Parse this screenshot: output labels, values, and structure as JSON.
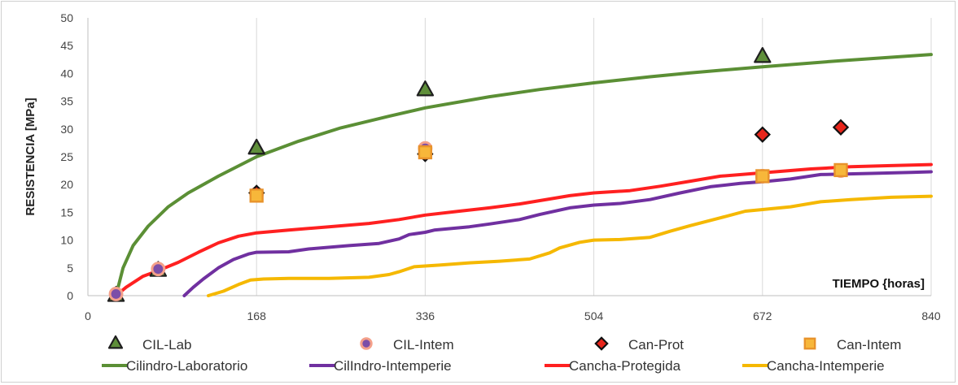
{
  "chart_data": {
    "type": "line",
    "xlabel": "TIEMPO {horas]",
    "ylabel": "RESISTENCIA [MPa]",
    "xlim": [
      0,
      840
    ],
    "ylim": [
      0,
      50
    ],
    "x_ticks": [
      0,
      168,
      336,
      504,
      672,
      840
    ],
    "y_ticks": [
      0,
      5,
      10,
      15,
      20,
      25,
      30,
      35,
      40,
      45,
      50
    ],
    "grid": "vertical",
    "legend_position": "bottom",
    "scatter_series": [
      {
        "name": "CIL-Lab",
        "marker": "triangle",
        "color": "#1f1f1f",
        "fill": "#5f8f3a",
        "points": [
          [
            28,
            0
          ],
          [
            70,
            4.5
          ],
          [
            168,
            26.5
          ],
          [
            336,
            37
          ],
          [
            672,
            43
          ]
        ]
      },
      {
        "name": "CIL-Intem",
        "marker": "circle",
        "color": "#f4a08a",
        "fill": "#7b4ea8",
        "points": [
          [
            28,
            0.3
          ],
          [
            70,
            4.8
          ],
          [
            168,
            18.3
          ],
          [
            336,
            26.5
          ],
          [
            672,
            21.5
          ],
          [
            750,
            22.5
          ]
        ]
      },
      {
        "name": "Can-Prot",
        "marker": "diamond",
        "color": "#111111",
        "fill": "#e8251b",
        "points": [
          [
            168,
            18.5
          ],
          [
            336,
            25.5
          ],
          [
            672,
            29
          ],
          [
            750,
            30.3
          ]
        ]
      },
      {
        "name": "Can-Intem",
        "marker": "square",
        "color": "#e8932b",
        "fill": "#f7b73a",
        "points": [
          [
            168,
            18
          ],
          [
            336,
            25.8
          ],
          [
            672,
            21.5
          ],
          [
            750,
            22.6
          ]
        ]
      }
    ],
    "line_series": [
      {
        "name": "Cilindro-Laboratorio",
        "color": "#5b8f35",
        "points": [
          [
            28,
            0
          ],
          [
            35,
            5
          ],
          [
            45,
            9
          ],
          [
            60,
            12.5
          ],
          [
            80,
            16
          ],
          [
            100,
            18.5
          ],
          [
            130,
            21.5
          ],
          [
            168,
            25
          ],
          [
            210,
            27.8
          ],
          [
            252,
            30.2
          ],
          [
            300,
            32.3
          ],
          [
            336,
            33.8
          ],
          [
            400,
            35.8
          ],
          [
            450,
            37.1
          ],
          [
            504,
            38.3
          ],
          [
            560,
            39.4
          ],
          [
            600,
            40.1
          ],
          [
            672,
            41.2
          ],
          [
            750,
            42.3
          ],
          [
            840,
            43.4
          ]
        ]
      },
      {
        "name": "CilIndro-Intemperie",
        "color": "#7030a0",
        "points": [
          [
            96,
            0
          ],
          [
            105,
            1.5
          ],
          [
            115,
            3
          ],
          [
            130,
            5
          ],
          [
            145,
            6.5
          ],
          [
            160,
            7.5
          ],
          [
            168,
            7.8
          ],
          [
            200,
            7.9
          ],
          [
            220,
            8.4
          ],
          [
            260,
            9
          ],
          [
            290,
            9.4
          ],
          [
            310,
            10.2
          ],
          [
            320,
            11
          ],
          [
            336,
            11.4
          ],
          [
            345,
            11.8
          ],
          [
            380,
            12.4
          ],
          [
            400,
            12.9
          ],
          [
            430,
            13.7
          ],
          [
            450,
            14.6
          ],
          [
            480,
            15.8
          ],
          [
            504,
            16.3
          ],
          [
            530,
            16.6
          ],
          [
            560,
            17.3
          ],
          [
            590,
            18.5
          ],
          [
            620,
            19.6
          ],
          [
            650,
            20.2
          ],
          [
            672,
            20.5
          ],
          [
            700,
            21
          ],
          [
            730,
            21.8
          ],
          [
            780,
            22
          ],
          [
            820,
            22.2
          ],
          [
            840,
            22.3
          ]
        ]
      },
      {
        "name": "Cancha-Protegida",
        "color": "#ff2020",
        "points": [
          [
            28,
            0
          ],
          [
            38,
            1.5
          ],
          [
            55,
            3.5
          ],
          [
            70,
            4.5
          ],
          [
            90,
            6
          ],
          [
            110,
            7.8
          ],
          [
            130,
            9.5
          ],
          [
            150,
            10.7
          ],
          [
            168,
            11.3
          ],
          [
            200,
            11.8
          ],
          [
            240,
            12.4
          ],
          [
            280,
            13
          ],
          [
            310,
            13.7
          ],
          [
            336,
            14.5
          ],
          [
            370,
            15.2
          ],
          [
            400,
            15.8
          ],
          [
            430,
            16.5
          ],
          [
            460,
            17.4
          ],
          [
            480,
            18
          ],
          [
            504,
            18.5
          ],
          [
            540,
            18.9
          ],
          [
            570,
            19.7
          ],
          [
            600,
            20.6
          ],
          [
            630,
            21.5
          ],
          [
            672,
            22.1
          ],
          [
            720,
            22.8
          ],
          [
            760,
            23.2
          ],
          [
            800,
            23.4
          ],
          [
            840,
            23.6
          ]
        ]
      },
      {
        "name": "Cancha-Intemperie",
        "color": "#f5b800",
        "points": [
          [
            120,
            0
          ],
          [
            135,
            0.8
          ],
          [
            150,
            2
          ],
          [
            162,
            2.8
          ],
          [
            175,
            3
          ],
          [
            200,
            3.1
          ],
          [
            240,
            3.1
          ],
          [
            280,
            3.3
          ],
          [
            300,
            3.8
          ],
          [
            310,
            4.3
          ],
          [
            325,
            5.2
          ],
          [
            350,
            5.5
          ],
          [
            380,
            5.9
          ],
          [
            410,
            6.2
          ],
          [
            440,
            6.6
          ],
          [
            460,
            7.7
          ],
          [
            470,
            8.6
          ],
          [
            490,
            9.6
          ],
          [
            504,
            10
          ],
          [
            530,
            10.1
          ],
          [
            560,
            10.5
          ],
          [
            580,
            11.6
          ],
          [
            600,
            12.6
          ],
          [
            630,
            14
          ],
          [
            655,
            15.2
          ],
          [
            672,
            15.5
          ],
          [
            700,
            16
          ],
          [
            730,
            16.9
          ],
          [
            760,
            17.3
          ],
          [
            800,
            17.7
          ],
          [
            840,
            17.9
          ]
        ]
      }
    ]
  }
}
